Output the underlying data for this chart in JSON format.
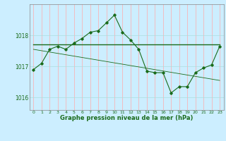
{
  "title": "Graphe pression niveau de la mer (hPa)",
  "background_color": "#cceeff",
  "grid_color_v": "#ffaaaa",
  "grid_color_h": "#aadddd",
  "line_color": "#1a6b1a",
  "x_ticks": [
    0,
    1,
    2,
    3,
    4,
    5,
    6,
    7,
    8,
    9,
    10,
    11,
    12,
    13,
    14,
    15,
    16,
    17,
    18,
    19,
    20,
    21,
    22,
    23
  ],
  "y_ticks": [
    1016,
    1017,
    1018
  ],
  "ylim": [
    1015.6,
    1019.0
  ],
  "xlim": [
    -0.5,
    23.5
  ],
  "series1": [
    [
      0,
      1016.9
    ],
    [
      1,
      1017.1
    ],
    [
      2,
      1017.55
    ],
    [
      3,
      1017.65
    ],
    [
      4,
      1017.55
    ],
    [
      5,
      1017.75
    ],
    [
      6,
      1017.9
    ],
    [
      7,
      1018.1
    ],
    [
      8,
      1018.15
    ],
    [
      9,
      1018.4
    ],
    [
      10,
      1018.65
    ],
    [
      11,
      1018.1
    ],
    [
      12,
      1017.85
    ],
    [
      13,
      1017.55
    ],
    [
      14,
      1016.85
    ],
    [
      15,
      1016.8
    ],
    [
      16,
      1016.8
    ],
    [
      17,
      1016.15
    ],
    [
      18,
      1016.35
    ],
    [
      19,
      1016.35
    ],
    [
      20,
      1016.8
    ],
    [
      21,
      1016.95
    ],
    [
      22,
      1017.05
    ],
    [
      23,
      1017.65
    ]
  ],
  "regression_line": [
    [
      0,
      1017.7
    ],
    [
      23,
      1017.7
    ]
  ],
  "regression_line2": [
    [
      0,
      1017.55
    ],
    [
      23,
      1016.55
    ]
  ]
}
